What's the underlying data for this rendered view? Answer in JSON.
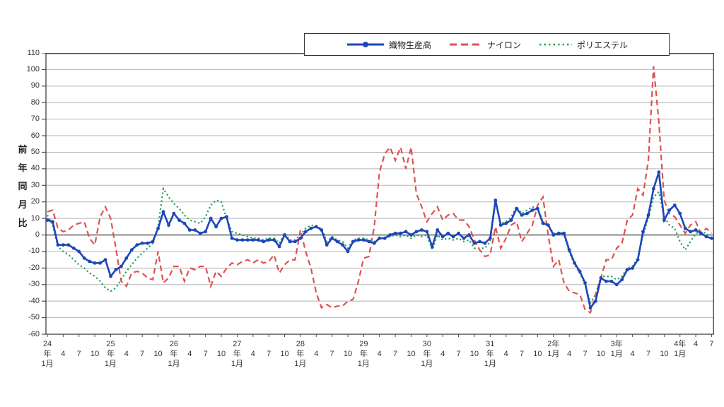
{
  "chart": {
    "legend": [
      {
        "label": "織物生産高",
        "series": "orimono",
        "color": "#1d46b8",
        "style": "solid-marker"
      },
      {
        "label": "ナイロン",
        "series": "nylon",
        "color": "#e05252",
        "style": "dashed"
      },
      {
        "label": "ポリエステル",
        "series": "polyester",
        "color": "#22a05a",
        "style": "dotted"
      }
    ]
  },
  "chart_data": {
    "type": "line",
    "title": "",
    "ylabel": "前年同月比",
    "ylabel_chars": [
      "前",
      "年",
      "同",
      "月",
      "比"
    ],
    "ylim": [
      -60,
      110
    ],
    "y_tick_step": 10,
    "grid": true,
    "legend_position": "top",
    "x_unit": "month",
    "x_start": "平成24年1月",
    "x_end": "令和4年7月",
    "x_ticks": [
      {
        "m": 0,
        "r1": "24",
        "r2": "年",
        "r3": "1月"
      },
      {
        "m": 3,
        "r2": "4"
      },
      {
        "m": 6,
        "r2": "7"
      },
      {
        "m": 9,
        "r2": "10"
      },
      {
        "m": 12,
        "r1": "25",
        "r2": "年",
        "r3": "1月"
      },
      {
        "m": 15,
        "r2": "4"
      },
      {
        "m": 18,
        "r2": "7"
      },
      {
        "m": 21,
        "r2": "10"
      },
      {
        "m": 24,
        "r1": "26",
        "r2": "年",
        "r3": "1月"
      },
      {
        "m": 27,
        "r2": "4"
      },
      {
        "m": 30,
        "r2": "7"
      },
      {
        "m": 33,
        "r2": "10"
      },
      {
        "m": 36,
        "r1": "27",
        "r2": "年",
        "r3": "1月"
      },
      {
        "m": 39,
        "r2": "4"
      },
      {
        "m": 42,
        "r2": "7"
      },
      {
        "m": 45,
        "r2": "10"
      },
      {
        "m": 48,
        "r1": "28",
        "r2": "年",
        "r3": "1月"
      },
      {
        "m": 51,
        "r2": "4"
      },
      {
        "m": 54,
        "r2": "7"
      },
      {
        "m": 57,
        "r2": "10"
      },
      {
        "m": 60,
        "r1": "29",
        "r2": "年",
        "r3": "1月"
      },
      {
        "m": 63,
        "r2": "4"
      },
      {
        "m": 66,
        "r2": "7"
      },
      {
        "m": 69,
        "r2": "10"
      },
      {
        "m": 72,
        "r1": "30",
        "r2": "年",
        "r3": "1月"
      },
      {
        "m": 75,
        "r2": "4"
      },
      {
        "m": 78,
        "r2": "7"
      },
      {
        "m": 81,
        "r2": "10"
      },
      {
        "m": 84,
        "r1": "31",
        "r2": "年",
        "r3": "1月"
      },
      {
        "m": 87,
        "r2": "4"
      },
      {
        "m": 90,
        "r2": "7"
      },
      {
        "m": 93,
        "r2": "10"
      },
      {
        "m": 96,
        "r1": "2年",
        "r2": "1月"
      },
      {
        "m": 99,
        "r2": "4"
      },
      {
        "m": 102,
        "r2": "7"
      },
      {
        "m": 105,
        "r2": "10"
      },
      {
        "m": 108,
        "r1": "3年",
        "r2": "1月"
      },
      {
        "m": 111,
        "r2": "4"
      },
      {
        "m": 114,
        "r2": "7"
      },
      {
        "m": 117,
        "r2": "10"
      },
      {
        "m": 120,
        "r1": "4年",
        "r2": "1月"
      },
      {
        "m": 123,
        "r1": "4"
      },
      {
        "m": 126,
        "r1": "7"
      }
    ],
    "series": [
      {
        "name": "織物生産高",
        "key": "orimono",
        "color": "#1d46b8",
        "style": "solid-marker",
        "values": [
          9,
          8,
          -6,
          -6,
          -6,
          -8,
          -10,
          -14,
          -16,
          -17,
          -17,
          -15,
          -25,
          -21,
          -19,
          -14,
          -9,
          -6,
          -5,
          -5,
          -4,
          4,
          14,
          6,
          13,
          9,
          7,
          3,
          3,
          1,
          2,
          10,
          5,
          10,
          11,
          -2,
          -3,
          -3,
          -3,
          -3,
          -3,
          -4,
          -3,
          -3,
          -7,
          0,
          -4,
          -4,
          -2,
          2,
          4,
          5,
          3,
          -6,
          -2,
          -4,
          -6,
          -10,
          -4,
          -3,
          -3,
          -4,
          -5,
          -2,
          -2,
          0,
          1,
          1,
          2,
          0,
          2,
          3,
          2,
          -7,
          3,
          -1,
          1,
          -1,
          1,
          -2,
          0,
          -5,
          -4,
          -5,
          -2,
          21,
          6,
          7,
          9,
          16,
          12,
          13,
          15,
          16,
          7,
          6,
          0,
          1,
          1,
          -9,
          -17,
          -22,
          -29,
          -44,
          -40,
          -26,
          -28,
          -28,
          -30,
          -27,
          -21,
          -20,
          -15,
          2,
          12,
          28,
          38,
          9,
          15,
          18,
          13,
          4,
          2,
          3,
          1,
          -1,
          -2
        ]
      },
      {
        "name": "ナイロン",
        "key": "nylon",
        "color": "#e05252",
        "style": "dashed",
        "values": [
          14,
          15,
          4,
          2,
          3,
          6,
          7,
          8,
          -2,
          -6,
          11,
          17,
          10,
          -8,
          -28,
          -31,
          -23,
          -22,
          -23,
          -26,
          -27,
          -10,
          -29,
          -26,
          -19,
          -19,
          -28,
          -20,
          -21,
          -19,
          -19,
          -31,
          -22,
          -25,
          -20,
          -17,
          -18,
          -16,
          -15,
          -17,
          -15,
          -17,
          -16,
          -12,
          -23,
          -18,
          -15,
          -15,
          3,
          -10,
          -20,
          -35,
          -44,
          -42,
          -44,
          -43,
          -43,
          -40,
          -39,
          -28,
          -14,
          -13,
          5,
          38,
          49,
          53,
          45,
          53,
          40,
          53,
          25,
          17,
          8,
          13,
          17,
          9,
          12,
          13,
          9,
          9,
          5,
          -3,
          -9,
          -13,
          -12,
          5,
          -8,
          -2,
          6,
          8,
          -4,
          1,
          6,
          18,
          23,
          0,
          -19,
          -15,
          -29,
          -34,
          -35,
          -36,
          -45,
          -47,
          -36,
          -26,
          -15,
          -15,
          -8,
          -5,
          9,
          12,
          28,
          24,
          45,
          102,
          68,
          21,
          13,
          11,
          6,
          1,
          6,
          8,
          1,
          4,
          1
        ]
      },
      {
        "name": "ポリエステル",
        "key": "polyester",
        "color": "#22a05a",
        "style": "dotted",
        "values": [
          12,
          6,
          -7,
          -10,
          -12,
          -15,
          -18,
          -20,
          -23,
          -25,
          -28,
          -32,
          -34,
          -32,
          -27,
          -22,
          -18,
          -14,
          -11,
          -8,
          -5,
          5,
          28,
          23,
          19,
          16,
          12,
          9,
          8,
          7,
          11,
          18,
          21,
          20,
          10,
          2,
          1,
          0,
          -1,
          -2,
          -2,
          -3,
          -2,
          -2,
          -5,
          1,
          -3,
          -3,
          0,
          4,
          6,
          5,
          4,
          -4,
          -1,
          -3,
          -4,
          -8,
          -3,
          -2,
          -2,
          -3,
          -4,
          -2,
          -2,
          -1,
          0,
          -1,
          0,
          -2,
          0,
          -1,
          0,
          -9,
          0,
          -3,
          -2,
          -3,
          -2,
          -4,
          -3,
          -8,
          -8,
          -8,
          -4,
          20,
          7,
          8,
          11,
          17,
          13,
          15,
          17,
          16,
          8,
          6,
          1,
          1,
          0,
          -10,
          -18,
          -23,
          -30,
          -41,
          -36,
          -25,
          -25,
          -25,
          -27,
          -25,
          -20,
          -19,
          -14,
          0,
          10,
          23,
          26,
          11,
          6,
          4,
          -4,
          -9,
          -4,
          1,
          2,
          1,
          -2
        ]
      }
    ]
  }
}
